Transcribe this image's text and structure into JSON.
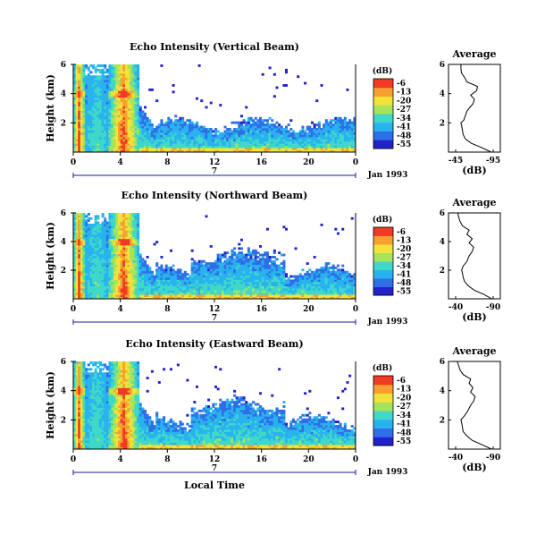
{
  "chart_data": [
    {
      "type": "heatmap",
      "title": "Echo Intensity (Vertical Beam)",
      "ylabel": "Height (km)",
      "x_ticks": [
        "0",
        "4",
        "8",
        "12",
        "16",
        "20",
        "0"
      ],
      "y_ticks": [
        "6",
        "4",
        "2"
      ],
      "xlim": [
        0,
        24
      ],
      "ylim": [
        0,
        6
      ],
      "day_label": "7",
      "date_label": "Jan 1993",
      "colorbar": {
        "unit": "(dB)",
        "ticks": [
          "-6",
          "-13",
          "-20",
          "-27",
          "-34",
          "-41",
          "-48",
          "-55"
        ]
      },
      "profile": {
        "title": "Average",
        "xlabel": "(dB)",
        "x_ticks": [
          "-45",
          "-95"
        ],
        "y_ticks": [
          "6",
          "4",
          "2"
        ],
        "height_km": [
          0.0,
          0.3,
          0.6,
          0.9,
          1.2,
          1.5,
          1.8,
          2.0,
          2.2,
          2.5,
          2.8,
          3.0,
          3.3,
          3.6,
          3.9,
          4.2,
          4.5,
          4.8,
          5.1,
          5.4,
          5.7,
          6.0
        ],
        "db": [
          -92,
          -80,
          -66,
          -58,
          -55,
          -54,
          -53,
          -52,
          -56,
          -58,
          -60,
          -63,
          -68,
          -70,
          -65,
          -73,
          -74,
          -60,
          -57,
          -53,
          -52,
          -52
        ]
      }
    },
    {
      "type": "heatmap",
      "title": "Echo Intensity (Northward Beam)",
      "ylabel": "Height (km)",
      "x_ticks": [
        "0",
        "4",
        "8",
        "12",
        "16",
        "20",
        "0"
      ],
      "y_ticks": [
        "6",
        "4",
        "2"
      ],
      "xlim": [
        0,
        24
      ],
      "ylim": [
        0,
        6
      ],
      "day_label": "7",
      "date_label": "Jan 1993",
      "colorbar": {
        "unit": "(dB)",
        "ticks": [
          "-6",
          "-13",
          "-20",
          "-27",
          "-34",
          "-41",
          "-48",
          "-55"
        ]
      },
      "profile": {
        "title": "Average",
        "xlabel": "(dB)",
        "x_ticks": [
          "-40",
          "-90"
        ],
        "y_ticks": [
          "6",
          "4",
          "2"
        ],
        "height_km": [
          0.0,
          0.3,
          0.6,
          0.9,
          1.2,
          1.5,
          1.8,
          2.0,
          2.3,
          2.6,
          3.0,
          3.3,
          3.6,
          3.9,
          4.2,
          4.5,
          4.8,
          5.1,
          5.4,
          5.7,
          6.0
        ],
        "db": [
          -88,
          -78,
          -65,
          -57,
          -52,
          -50,
          -49,
          -48,
          -50,
          -55,
          -58,
          -62,
          -64,
          -58,
          -62,
          -55,
          -58,
          -49,
          -46,
          -44,
          -43
        ]
      }
    },
    {
      "type": "heatmap",
      "title": "Echo Intensity (Eastward Beam)",
      "ylabel": "Height (km)",
      "xlabel": "Local Time",
      "x_ticks": [
        "0",
        "4",
        "8",
        "12",
        "16",
        "20",
        "0"
      ],
      "y_ticks": [
        "6",
        "4",
        "2"
      ],
      "xlim": [
        0,
        24
      ],
      "ylim": [
        0,
        6
      ],
      "day_label": "7",
      "date_label": "Jan 1993",
      "colorbar": {
        "unit": "(dB)",
        "ticks": [
          "-6",
          "-13",
          "-20",
          "-27",
          "-34",
          "-41",
          "-48",
          "-55"
        ]
      },
      "profile": {
        "title": "Average",
        "xlabel": "(dB)",
        "x_ticks": [
          "-40",
          "-90"
        ],
        "y_ticks": [
          "6",
          "4",
          "2"
        ],
        "height_km": [
          0.0,
          0.3,
          0.6,
          0.9,
          1.2,
          1.5,
          1.8,
          2.0,
          2.3,
          2.6,
          3.0,
          3.3,
          3.6,
          3.9,
          4.2,
          4.5,
          4.8,
          5.1,
          5.4,
          5.7,
          6.0
        ],
        "db": [
          -88,
          -75,
          -62,
          -55,
          -50,
          -49,
          -48,
          -47,
          -52,
          -56,
          -60,
          -64,
          -66,
          -60,
          -63,
          -58,
          -60,
          -50,
          -46,
          -44,
          -42
        ]
      }
    }
  ],
  "colors": {
    "scale": [
      "#2222cc",
      "#2e6fe8",
      "#29b3ee",
      "#3fd8c9",
      "#a7e35a",
      "#f2e33a",
      "#f7a02f",
      "#f03a26"
    ],
    "axis": "#000000",
    "axis_line": "#1a1a99"
  }
}
